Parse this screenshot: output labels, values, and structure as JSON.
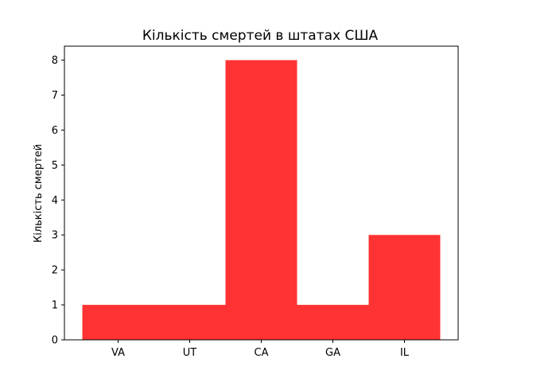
{
  "chart_data": {
    "type": "bar",
    "title": "Кількість смертей в штатах США",
    "xlabel": "",
    "ylabel": "Кількість смертей",
    "categories": [
      "VA",
      "UT",
      "CA",
      "GA",
      "IL"
    ],
    "values": [
      1,
      1,
      8,
      1,
      3
    ],
    "ylim": [
      0,
      8.4
    ],
    "yticks": [
      0,
      1,
      2,
      3,
      4,
      5,
      6,
      7,
      8
    ],
    "bar_color": "#ff3333",
    "grid": false,
    "legend": "none"
  }
}
